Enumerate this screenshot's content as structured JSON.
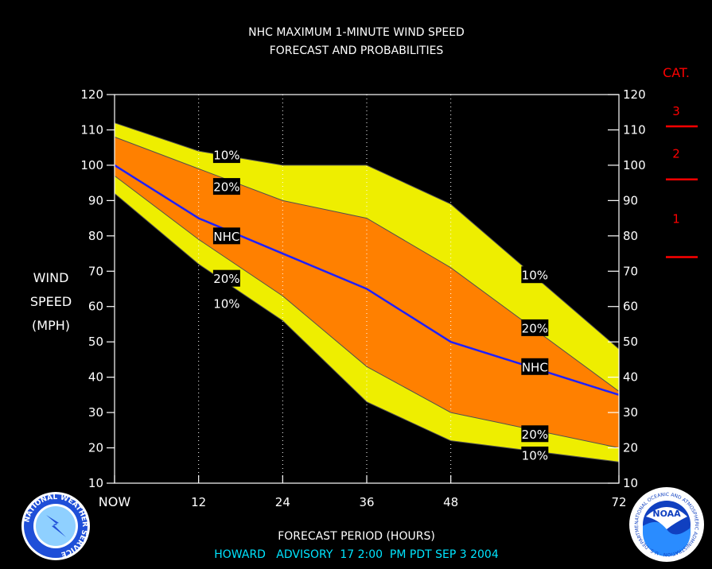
{
  "title_line1": "NHC MAXIMUM 1-MINUTE WIND SPEED",
  "title_line2": "FORECAST AND PROBABILITIES",
  "ylabel": [
    "WIND",
    "SPEED",
    "(MPH)"
  ],
  "xlabel": "FORECAST PERIOD (HOURS)",
  "advisory": "HOWARD   ADVISORY  17 2:00  PM PDT SEP 3 2004",
  "category_header": "CAT.",
  "category_labels": [
    "3",
    "2",
    "1"
  ],
  "logos": {
    "left": {
      "name": "NATIONAL WEATHER SERVICE"
    },
    "right": {
      "name": "NOAA",
      "ring_text": "NATIONAL OCEANIC AND ATMOSPHERIC ADMINISTRATION · U.S. DEPARTMENT OF COMMERCE"
    }
  },
  "colors": {
    "background": "#000000",
    "band_10": "#eeee00",
    "band_20": "#ff8000",
    "nhc_line": "#2020ff",
    "category_red": "#ff0000",
    "advisory_text": "#00e5ff"
  },
  "chart_data": {
    "type": "area",
    "x": [
      0,
      12,
      24,
      36,
      48,
      72
    ],
    "xticks": [
      0,
      12,
      24,
      36,
      48,
      72
    ],
    "xtick_labels": [
      "NOW",
      "12",
      "24",
      "36",
      "48",
      "72"
    ],
    "xlim": [
      0,
      72
    ],
    "ylim": [
      10,
      120
    ],
    "yticks": [
      10,
      20,
      30,
      40,
      50,
      60,
      70,
      80,
      90,
      100,
      110,
      120
    ],
    "category_thresholds": [
      111,
      96,
      74
    ],
    "series": [
      {
        "name": "10%",
        "band": "upper",
        "x": [
          0,
          12,
          24,
          36,
          48,
          72
        ],
        "values": [
          112,
          104,
          100,
          100,
          89,
          48
        ]
      },
      {
        "name": "20%",
        "band": "upper",
        "x": [
          0,
          12,
          24,
          36,
          48,
          72
        ],
        "values": [
          108,
          99,
          90,
          85,
          71,
          36
        ]
      },
      {
        "name": "NHC",
        "band": "forecast",
        "x": [
          0,
          12,
          24,
          36,
          48,
          72
        ],
        "values": [
          100,
          85,
          75,
          65,
          50,
          35
        ]
      },
      {
        "name": "20%",
        "band": "lower",
        "x": [
          0,
          12,
          24,
          36,
          48,
          72
        ],
        "values": [
          97,
          79,
          63,
          43,
          30,
          20
        ]
      },
      {
        "name": "10%",
        "band": "lower",
        "x": [
          0,
          12,
          24,
          36,
          48,
          72
        ],
        "values": [
          92,
          72,
          56,
          33,
          22,
          16
        ]
      }
    ],
    "series_labels": [
      {
        "text": "10%",
        "x": 16,
        "y": 103
      },
      {
        "text": "20%",
        "x": 16,
        "y": 94
      },
      {
        "text": "NHC",
        "x": 16,
        "y": 80
      },
      {
        "text": "20%",
        "x": 16,
        "y": 68
      },
      {
        "text": "10%",
        "x": 16,
        "y": 61
      },
      {
        "text": "10%",
        "x": 60,
        "y": 69
      },
      {
        "text": "20%",
        "x": 60,
        "y": 54
      },
      {
        "text": "NHC",
        "x": 60,
        "y": 43
      },
      {
        "text": "20%",
        "x": 60,
        "y": 24
      },
      {
        "text": "10%",
        "x": 60,
        "y": 18
      }
    ],
    "grid": "vertical dotted"
  }
}
